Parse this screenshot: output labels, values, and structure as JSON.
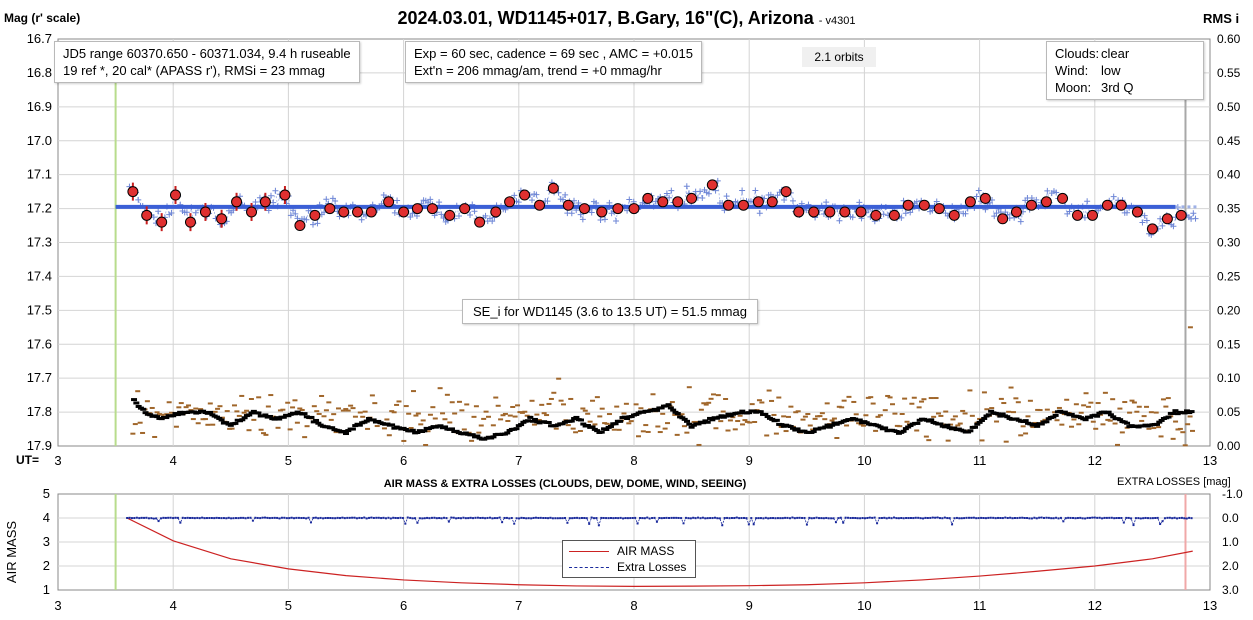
{
  "header": {
    "title": "2024.03.01, WD1145+017, B.Gary, 16\"(C), Arizona",
    "version": "- v4301",
    "left_axis_label": "Mag (r' scale)",
    "right_axis_label": "RMS i",
    "ut_label": "UT=",
    "extra_losses_label": "EXTRA LOSSES [mag]"
  },
  "info_box_1": {
    "line1": "JD5 range 60370.650 - 60371.034, 9.4 h ruseable",
    "line2": "19 ref *, 20 cal*  (APASS r'), RMSi = 23 mmag"
  },
  "info_box_2": {
    "line1": "Exp = 60 sec, cadence = 69 sec , AMC = +0.015",
    "line2": "Ext'n = 206 mmag/am, trend = +0 mmag/hr"
  },
  "orbits_label": "2.1 orbits",
  "conditions": {
    "clouds_label": "Clouds:",
    "clouds_value": "clear",
    "wind_label": "Wind:",
    "wind_value": "low",
    "moon_label": "Moon:",
    "moon_value": "3rd Q"
  },
  "se_note": "SE_i for WD1145 (3.6 to 13.5 UT) = 51.5 mmag",
  "lower_panel": {
    "title": "AIR MASS & EXTRA LOSSES (CLOUDS, DEW, DOME, WIND, SEEING)",
    "y_label": "AIR MASS",
    "legend_airmass": "AIR MASS",
    "legend_losses": "Extra Losses"
  },
  "colors": {
    "model_line": "#3b5fd6",
    "binned_fill": "#e03030",
    "raw_points": "#6e86d6",
    "rms_raw": "#a0662a",
    "rms_smooth": "#000000",
    "airmass": "#cc2222",
    "losses": "#1a2a9c",
    "start_marker": "#b8dc8c",
    "end_marker": "#a8a8a8",
    "end_marker_lower": "#f0a8a8"
  },
  "chart_data": [
    {
      "type": "scatter",
      "title": "2024.03.01, WD1145+017, B.Gary, 16\"(C), Arizona",
      "xlabel": "UT=",
      "ylabel": "Mag (r' scale)",
      "xlim": [
        3,
        13
      ],
      "ylim": [
        17.9,
        16.7
      ],
      "y2label": "RMS i",
      "y2lim": [
        0.0,
        0.6
      ],
      "x_ticks": [
        "3",
        "4",
        "5",
        "6",
        "7",
        "8",
        "9",
        "10",
        "11",
        "12",
        "13"
      ],
      "y_ticks": [
        "16.7",
        "16.8",
        "16.9",
        "17.0",
        "17.1",
        "17.2",
        "17.3",
        "17.4",
        "17.5",
        "17.6",
        "17.7",
        "17.8",
        "17.9"
      ],
      "y2_ticks": [
        "0.60",
        "0.55",
        "0.50",
        "0.45",
        "0.40",
        "0.35",
        "0.30",
        "0.25",
        "0.20",
        "0.15",
        "0.10",
        "0.05",
        "0.00"
      ],
      "grid": true,
      "start_ut": 3.5,
      "end_ut": 12.9,
      "model_mag": 17.195,
      "series": [
        {
          "kind": "binned",
          "x": [
            3.65,
            3.77,
            3.9,
            4.02,
            4.15,
            4.28,
            4.42,
            4.55,
            4.68,
            4.8,
            4.97,
            5.1,
            5.23,
            5.36,
            5.48,
            5.6,
            5.72,
            5.87,
            6.0,
            6.12,
            6.25,
            6.4,
            6.53,
            6.66,
            6.8,
            6.92,
            7.05,
            7.18,
            7.3,
            7.43,
            7.57,
            7.72,
            7.86,
            8.0,
            8.12,
            8.25,
            8.38,
            8.5,
            8.68,
            8.82,
            8.95,
            9.08,
            9.2,
            9.32,
            9.43,
            9.56,
            9.7,
            9.83,
            9.97,
            10.1,
            10.26,
            10.38,
            10.52,
            10.65,
            10.78,
            10.92,
            11.05,
            11.2,
            11.32,
            11.45,
            11.58,
            11.72,
            11.85,
            11.98,
            12.11,
            12.23,
            12.37,
            12.5,
            12.63,
            12.75
          ],
          "y": [
            17.15,
            17.22,
            17.24,
            17.16,
            17.24,
            17.21,
            17.23,
            17.18,
            17.21,
            17.18,
            17.16,
            17.25,
            17.22,
            17.2,
            17.21,
            17.21,
            17.21,
            17.18,
            17.21,
            17.2,
            17.2,
            17.22,
            17.2,
            17.24,
            17.21,
            17.18,
            17.16,
            17.19,
            17.14,
            17.19,
            17.2,
            17.21,
            17.2,
            17.2,
            17.17,
            17.18,
            17.18,
            17.17,
            17.13,
            17.19,
            17.19,
            17.18,
            17.18,
            17.15,
            17.21,
            17.21,
            17.21,
            17.21,
            17.21,
            17.22,
            17.22,
            17.19,
            17.19,
            17.2,
            17.22,
            17.18,
            17.17,
            17.23,
            17.21,
            17.19,
            17.18,
            17.17,
            17.22,
            17.22,
            17.19,
            17.19,
            17.21,
            17.26,
            17.23,
            17.22
          ]
        },
        {
          "kind": "rms_smooth",
          "x": [
            3.65,
            3.75,
            3.9,
            4.1,
            4.3,
            4.5,
            4.7,
            4.9,
            5.1,
            5.3,
            5.5,
            5.7,
            5.9,
            6.1,
            6.3,
            6.5,
            6.7,
            6.9,
            7.1,
            7.3,
            7.5,
            7.7,
            7.9,
            8.1,
            8.3,
            8.5,
            8.7,
            8.9,
            9.1,
            9.3,
            9.5,
            9.7,
            9.9,
            10.1,
            10.3,
            10.5,
            10.7,
            10.9,
            11.1,
            11.3,
            11.5,
            11.7,
            11.9,
            12.1,
            12.3,
            12.5,
            12.7,
            12.85
          ],
          "y": [
            0.07,
            0.05,
            0.04,
            0.05,
            0.05,
            0.03,
            0.05,
            0.04,
            0.05,
            0.03,
            0.02,
            0.04,
            0.03,
            0.02,
            0.03,
            0.02,
            0.01,
            0.02,
            0.04,
            0.03,
            0.04,
            0.02,
            0.04,
            0.05,
            0.06,
            0.03,
            0.04,
            0.05,
            0.05,
            0.03,
            0.02,
            0.03,
            0.04,
            0.03,
            0.02,
            0.04,
            0.03,
            0.02,
            0.05,
            0.04,
            0.03,
            0.05,
            0.04,
            0.05,
            0.03,
            0.03,
            0.05,
            0.05
          ]
        }
      ]
    },
    {
      "type": "line",
      "title": "AIR MASS & EXTRA LOSSES (CLOUDS, DEW, DOME, WIND, SEEING)",
      "xlabel": "",
      "ylabel": "AIR MASS",
      "xlim": [
        3,
        13
      ],
      "ylim": [
        1,
        5
      ],
      "x_ticks": [
        "3",
        "4",
        "5",
        "6",
        "7",
        "8",
        "9",
        "10",
        "11",
        "12",
        "13"
      ],
      "y_ticks": [
        "5",
        "4",
        "3",
        "2",
        "1"
      ],
      "y2label": "EXTRA LOSSES [mag]",
      "y2lim": [
        -1.0,
        3.0
      ],
      "y2_ticks": [
        "-1.0",
        "0.0",
        "1.0",
        "2.0",
        "3.0"
      ],
      "series": [
        {
          "name": "AIR MASS",
          "x": [
            3.6,
            4.0,
            4.5,
            5.0,
            5.5,
            6.0,
            6.5,
            7.0,
            7.5,
            8.0,
            8.5,
            9.0,
            9.5,
            10.0,
            10.5,
            11.0,
            11.5,
            12.0,
            12.5,
            12.85
          ],
          "y": [
            4.0,
            3.05,
            2.3,
            1.88,
            1.6,
            1.42,
            1.3,
            1.22,
            1.17,
            1.15,
            1.16,
            1.18,
            1.22,
            1.3,
            1.42,
            1.58,
            1.78,
            2.0,
            2.3,
            2.62
          ]
        },
        {
          "name": "Extra Losses",
          "x": [
            3.6,
            4.0,
            5.0,
            6.0,
            7.0,
            8.0,
            9.0,
            10.0,
            11.0,
            12.0,
            12.85
          ],
          "y": [
            0.0,
            0.0,
            0.0,
            0.0,
            0.0,
            0.0,
            0.0,
            0.0,
            0.0,
            0.0,
            0.0
          ]
        }
      ]
    }
  ]
}
